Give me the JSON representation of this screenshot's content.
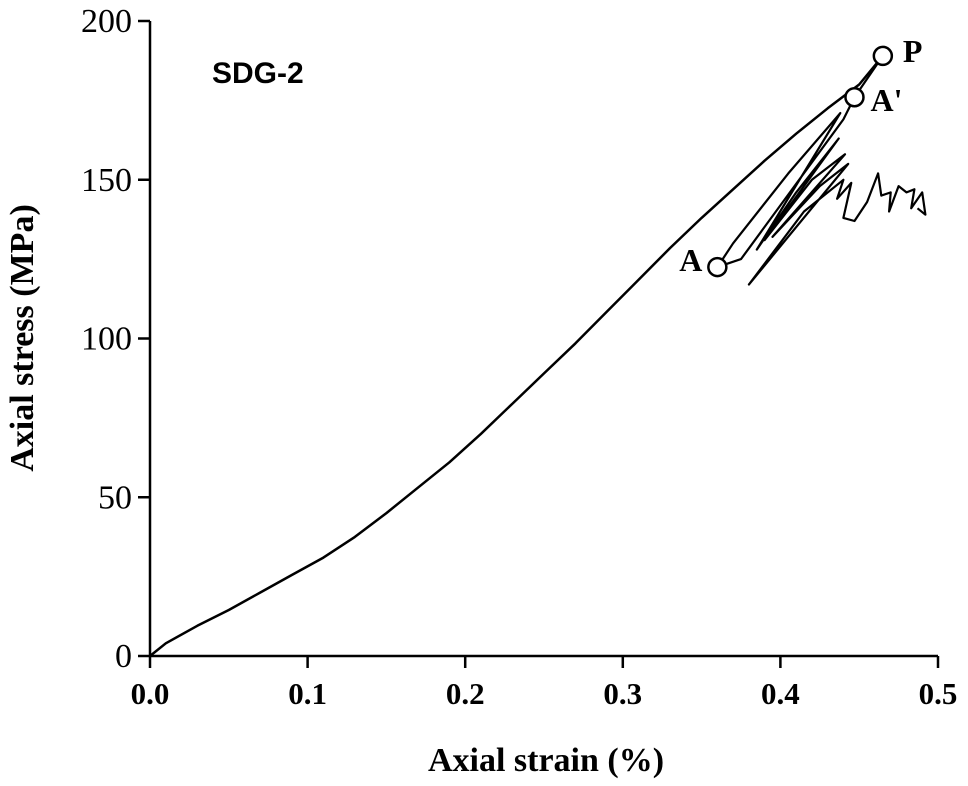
{
  "chart_data": {
    "type": "line",
    "title": "SDG-2",
    "xlabel": "Axial strain (%)",
    "ylabel": "Axial stress (MPa)",
    "xlim": [
      0,
      0.5
    ],
    "ylim": [
      0,
      200
    ],
    "x_ticks": [
      "0.0",
      "0.1",
      "0.2",
      "0.3",
      "0.4",
      "0.5"
    ],
    "y_ticks": [
      "0",
      "50",
      "100",
      "150",
      "200"
    ],
    "grid": false,
    "series": [
      {
        "points": [
          [
            0.0,
            0
          ],
          [
            0.01,
            4
          ],
          [
            0.03,
            9.5
          ],
          [
            0.05,
            14.5
          ],
          [
            0.07,
            20
          ],
          [
            0.09,
            25.5
          ],
          [
            0.11,
            31
          ],
          [
            0.13,
            37.5
          ],
          [
            0.15,
            45
          ],
          [
            0.17,
            53
          ],
          [
            0.19,
            61
          ],
          [
            0.21,
            70
          ],
          [
            0.23,
            79.5
          ],
          [
            0.25,
            89
          ],
          [
            0.27,
            98.5
          ],
          [
            0.29,
            108.5
          ],
          [
            0.31,
            118.5
          ],
          [
            0.33,
            128.5
          ],
          [
            0.35,
            138
          ],
          [
            0.37,
            147
          ],
          [
            0.39,
            156
          ],
          [
            0.41,
            164.5
          ],
          [
            0.43,
            172.5
          ],
          [
            0.45,
            180
          ],
          [
            0.465,
            189
          ]
        ]
      },
      {
        "points": [
          [
            0.465,
            189
          ],
          [
            0.447,
            176
          ],
          [
            0.44,
            169
          ],
          [
            0.375,
            125
          ],
          [
            0.36,
            122.5
          ],
          [
            0.37,
            130
          ],
          [
            0.405,
            152
          ],
          [
            0.438,
            171
          ],
          [
            0.385,
            128
          ],
          [
            0.41,
            146
          ],
          [
            0.437,
            163
          ],
          [
            0.39,
            131
          ],
          [
            0.42,
            150
          ],
          [
            0.441,
            158
          ],
          [
            0.395,
            132
          ],
          [
            0.425,
            148
          ],
          [
            0.443,
            155
          ],
          [
            0.38,
            117
          ],
          [
            0.415,
            140
          ],
          [
            0.44,
            150
          ],
          [
            0.436,
            144
          ],
          [
            0.445,
            149
          ],
          [
            0.44,
            138
          ],
          [
            0.447,
            137
          ],
          [
            0.455,
            143
          ],
          [
            0.462,
            152
          ],
          [
            0.464,
            145
          ],
          [
            0.47,
            146
          ],
          [
            0.469,
            140
          ],
          [
            0.475,
            148
          ],
          [
            0.48,
            146
          ],
          [
            0.485,
            147
          ],
          [
            0.483,
            141
          ],
          [
            0.49,
            146
          ],
          [
            0.492,
            139
          ],
          [
            0.487,
            141
          ]
        ]
      }
    ],
    "points": [
      {
        "label": "P",
        "x": 0.465,
        "y": 189
      },
      {
        "label": "A'",
        "x": 0.447,
        "y": 176
      },
      {
        "label": "A",
        "x": 0.36,
        "y": 122.5
      }
    ]
  }
}
